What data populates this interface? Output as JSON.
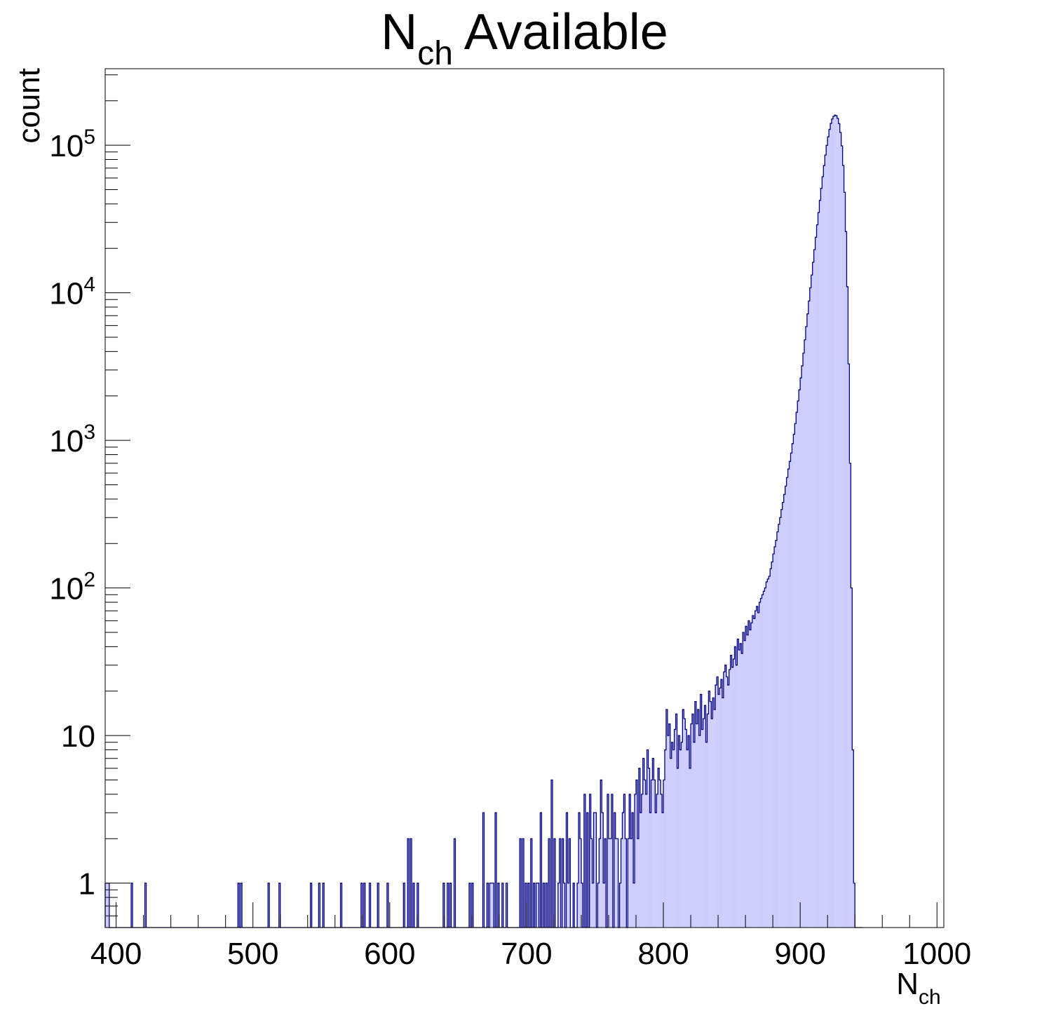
{
  "chart_data": {
    "type": "bar",
    "title": {
      "main": "N",
      "sub": "ch",
      "rest": " Available"
    },
    "xlabel": {
      "main": "N",
      "sub": "ch"
    },
    "ylabel": "count",
    "x_scale": "linear",
    "y_scale": "log",
    "xlim": [
      392,
      1005
    ],
    "ylim": [
      0.5,
      330000
    ],
    "x_ticks": [
      400,
      500,
      600,
      700,
      800,
      900,
      1000
    ],
    "y_ticks": [
      {
        "value": 1,
        "base": "1",
        "exp": ""
      },
      {
        "value": 10,
        "base": "10",
        "exp": ""
      },
      {
        "value": 100,
        "base": "10",
        "exp": "2"
      },
      {
        "value": 1000,
        "base": "10",
        "exp": "3"
      },
      {
        "value": 10000,
        "base": "10",
        "exp": "4"
      },
      {
        "value": 100000,
        "base": "10",
        "exp": "5"
      }
    ],
    "grid": false,
    "legend": "none",
    "series": [
      {
        "bin_width": 1,
        "x_start": 392,
        "values": [
          1,
          1,
          1,
          0,
          0,
          0,
          0,
          0,
          0,
          0,
          0,
          0,
          0,
          0,
          0,
          0,
          0,
          0,
          0,
          1,
          0,
          0,
          0,
          0,
          0,
          0,
          0,
          0,
          0,
          1,
          0,
          0,
          0,
          0,
          0,
          0,
          0,
          0,
          0,
          0,
          0,
          0,
          0,
          0,
          0,
          0,
          0,
          0,
          0,
          0,
          0,
          0,
          0,
          0,
          0,
          0,
          0,
          0,
          0,
          0,
          0,
          0,
          0,
          0,
          0,
          0,
          0,
          0,
          0,
          0,
          0,
          0,
          0,
          0,
          0,
          0,
          0,
          0,
          0,
          0,
          0,
          0,
          0,
          0,
          0,
          0,
          0,
          0,
          0,
          0,
          0,
          0,
          0,
          0,
          0,
          0,
          0,
          1,
          0,
          1,
          0,
          0,
          0,
          0,
          0,
          0,
          0,
          0,
          0,
          0,
          0,
          0,
          0,
          0,
          0,
          0,
          0,
          0,
          0,
          1,
          0,
          0,
          0,
          0,
          0,
          0,
          0,
          1,
          0,
          0,
          0,
          0,
          0,
          0,
          0,
          0,
          0,
          0,
          0,
          0,
          0,
          0,
          0,
          0,
          0,
          0,
          0,
          0,
          0,
          0,
          1,
          0,
          0,
          0,
          0,
          0,
          1,
          0,
          0,
          1,
          0,
          0,
          0,
          0,
          0,
          0,
          0,
          0,
          0,
          0,
          0,
          0,
          1,
          0,
          0,
          0,
          0,
          0,
          0,
          0,
          0,
          0,
          0,
          0,
          0,
          0,
          0,
          1,
          0,
          1,
          0,
          0,
          0,
          1,
          0,
          0,
          0,
          0,
          0,
          1,
          0,
          0,
          0,
          0,
          0,
          0,
          1,
          0,
          0,
          0,
          0,
          0,
          0,
          0,
          0,
          0,
          0,
          0,
          1,
          0,
          0,
          2,
          0,
          2,
          0,
          1,
          0,
          0,
          1,
          0,
          0,
          0,
          0,
          0,
          0,
          0,
          0,
          0,
          0,
          0,
          0,
          0,
          0,
          0,
          0,
          0,
          0,
          1,
          0,
          0,
          1,
          0,
          1,
          0,
          0,
          2,
          0,
          0,
          0,
          0,
          0,
          0,
          0,
          0,
          0,
          0,
          1,
          0,
          1,
          0,
          0,
          0,
          0,
          0,
          0,
          0,
          3,
          0,
          0,
          1,
          0,
          1,
          1,
          1,
          0,
          3,
          0,
          1,
          0,
          0,
          1,
          0,
          0,
          1,
          0,
          0,
          0,
          0,
          0,
          0,
          0,
          0,
          0,
          2,
          0,
          2,
          0,
          1,
          0,
          1,
          0,
          2,
          0,
          1,
          0,
          1,
          1,
          0,
          3,
          0,
          1,
          0,
          1,
          0,
          2,
          0,
          5,
          0,
          2,
          0,
          0,
          1,
          2,
          0,
          2,
          1,
          0,
          3,
          1,
          2,
          0,
          0,
          1,
          0,
          0,
          1,
          3,
          2,
          1,
          0,
          4,
          0,
          3,
          0,
          4,
          2,
          1,
          3,
          3,
          0,
          1,
          2,
          5,
          3,
          1,
          2,
          0,
          4,
          2,
          2,
          4,
          0,
          3,
          2,
          2,
          0,
          1,
          2,
          3,
          4,
          2,
          0,
          2,
          4,
          2,
          3,
          1,
          4,
          5,
          2,
          6,
          3,
          4,
          7,
          5,
          4,
          8,
          6,
          3,
          5,
          7,
          5,
          3,
          4,
          6,
          5,
          4,
          3,
          5,
          8,
          15,
          10,
          12,
          7,
          9,
          8,
          11,
          14,
          6,
          10,
          8,
          9,
          15,
          13,
          11,
          8,
          10,
          6,
          12,
          14,
          9,
          17,
          12,
          15,
          10,
          19,
          11,
          13,
          16,
          9,
          14,
          20,
          17,
          13,
          18,
          15,
          22,
          25,
          19,
          21,
          24,
          18,
          27,
          30,
          25,
          22,
          28,
          35,
          29,
          33,
          40,
          30,
          45,
          38,
          42,
          36,
          50,
          44,
          55,
          48,
          60,
          52,
          58,
          65,
          62,
          70,
          75,
          68,
          80,
          85,
          90,
          95,
          100,
          110,
          115,
          120,
          135,
          150,
          170,
          190,
          210,
          240,
          270,
          300,
          340,
          380,
          430,
          490,
          560,
          640,
          720,
          820,
          950,
          1100,
          1300,
          1550,
          1850,
          2200,
          2650,
          3200,
          3900,
          4800,
          5900,
          7200,
          8800,
          10800,
          13200,
          16100,
          19600,
          23800,
          28900,
          35000,
          42300,
          51000,
          61200,
          72800,
          85800,
          99800,
          114000,
          128000,
          140500,
          150500,
          157000,
          160000,
          158500,
          152000,
          140000,
          122000,
          99000,
          73000,
          48000,
          26000,
          11000,
          3300,
          700,
          100,
          8,
          1,
          0,
          0,
          0,
          0,
          0,
          0
        ]
      }
    ],
    "fill_color": "#ccccff",
    "line_color": "#000080"
  }
}
